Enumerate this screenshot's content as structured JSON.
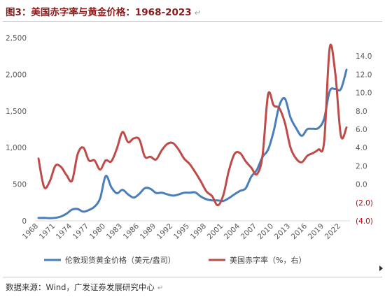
{
  "title": "图3：美国赤字率与黄金价格：1968-2023",
  "return_mark": "↵",
  "source": "数据来源：Wind，广发证券发展研究中心",
  "colors": {
    "gold": "#4a7ebb",
    "deficit": "#be4b48",
    "negative_tick": "#c00000",
    "axis_text": "#595959"
  },
  "chart_data": {
    "type": "line",
    "title": "美国赤字率与黄金价格：1968-2023",
    "grid": false,
    "legend_position": "bottom",
    "x_ticks": [
      "1968",
      "1971",
      "1974",
      "1977",
      "1980",
      "1983",
      "1986",
      "1989",
      "1992",
      "1995",
      "1998",
      "2001",
      "2004",
      "2007",
      "2010",
      "2013",
      "2016",
      "2019",
      "2022"
    ],
    "y_left": {
      "ticks": [
        "0",
        "500",
        "1,000",
        "1,500",
        "2,000",
        "2,500"
      ],
      "range": [
        0,
        2500
      ]
    },
    "y_right": {
      "ticks": [
        "(4.0)",
        "(2.0)",
        "0.0",
        "2.0",
        "4.0",
        "6.0",
        "8.0",
        "10.0",
        "12.0",
        "14.0",
        "16.0"
      ],
      "range": [
        -4,
        16
      ]
    },
    "series": [
      {
        "name": "伦敦现货黄金价格（美元/盎司）",
        "axis": "left",
        "color": "#4a7ebb",
        "x": [
          1968,
          1969,
          1970,
          1971,
          1972,
          1973,
          1974,
          1975,
          1976,
          1977,
          1978,
          1979,
          1980,
          1981,
          1982,
          1983,
          1984,
          1985,
          1986,
          1987,
          1988,
          1989,
          1990,
          1991,
          1992,
          1993,
          1994,
          1995,
          1996,
          1997,
          1998,
          1999,
          2000,
          2001,
          2002,
          2003,
          2004,
          2005,
          2006,
          2007,
          2008,
          2009,
          2010,
          2011,
          2012,
          2013,
          2014,
          2015,
          2016,
          2017,
          2018,
          2019,
          2020,
          2021,
          2022,
          2023
        ],
        "values": [
          39,
          41,
          36,
          41,
          58,
          97,
          154,
          161,
          125,
          148,
          193,
          306,
          612,
          460,
          376,
          424,
          361,
          317,
          368,
          447,
          437,
          381,
          384,
          362,
          344,
          360,
          384,
          384,
          388,
          331,
          294,
          279,
          279,
          271,
          310,
          363,
          409,
          445,
          604,
          697,
          872,
          972,
          1225,
          1572,
          1669,
          1411,
          1266,
          1160,
          1251,
          1257,
          1268,
          1393,
          1770,
          1799,
          1800,
          2063
        ]
      },
      {
        "name": "美国赤字率（%，右）",
        "axis": "right",
        "color": "#be4b48",
        "x": [
          1968,
          1969,
          1970,
          1971,
          1972,
          1973,
          1974,
          1975,
          1976,
          1977,
          1978,
          1979,
          1980,
          1981,
          1982,
          1983,
          1984,
          1985,
          1986,
          1987,
          1988,
          1989,
          1990,
          1991,
          1992,
          1993,
          1994,
          1995,
          1996,
          1997,
          1998,
          1999,
          2000,
          2001,
          2002,
          2003,
          2004,
          2005,
          2006,
          2007,
          2008,
          2009,
          2010,
          2011,
          2012,
          2013,
          2014,
          2015,
          2016,
          2017,
          2018,
          2019,
          2020,
          2021,
          2022,
          2023
        ],
        "values": [
          2.8,
          -0.3,
          0.3,
          2.0,
          1.9,
          1.0,
          0.4,
          3.3,
          4.0,
          2.6,
          2.6,
          1.6,
          2.6,
          2.5,
          3.9,
          5.7,
          4.6,
          5.0,
          4.9,
          3.0,
          3.0,
          2.7,
          3.7,
          4.4,
          4.5,
          3.8,
          2.8,
          2.2,
          1.3,
          0.3,
          -0.8,
          -1.3,
          -2.3,
          -1.2,
          1.5,
          3.3,
          3.4,
          2.5,
          1.8,
          1.1,
          3.1,
          9.8,
          8.6,
          8.3,
          6.7,
          4.0,
          2.8,
          2.4,
          3.1,
          3.4,
          3.8,
          4.6,
          14.9,
          12.1,
          5.3,
          6.2
        ]
      }
    ]
  }
}
